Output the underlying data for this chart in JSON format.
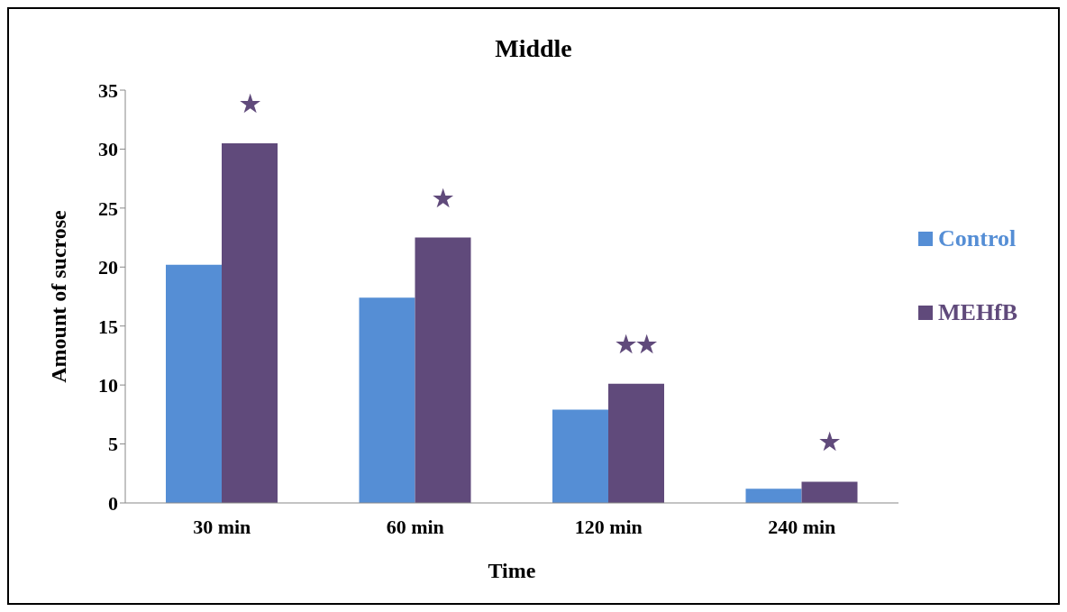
{
  "chart_data": {
    "type": "bar",
    "title": "Middle",
    "xlabel": "Time",
    "ylabel": "Amount  of sucrose",
    "categories": [
      "30 min",
      "60 min",
      "120 min",
      "240 min"
    ],
    "series": [
      {
        "name": "Control",
        "color": "#558ed5",
        "values": [
          20.2,
          17.4,
          7.9,
          1.2
        ]
      },
      {
        "name": "MEHfB",
        "color": "#604a7b",
        "values": [
          30.5,
          22.5,
          10.1,
          1.8
        ]
      }
    ],
    "ylim": [
      0,
      35
    ],
    "yticks": [
      0,
      5,
      10,
      15,
      20,
      25,
      30,
      35
    ],
    "grid": false,
    "legend": "right",
    "annotations": [
      "★",
      "★",
      "★★",
      "★"
    ]
  }
}
